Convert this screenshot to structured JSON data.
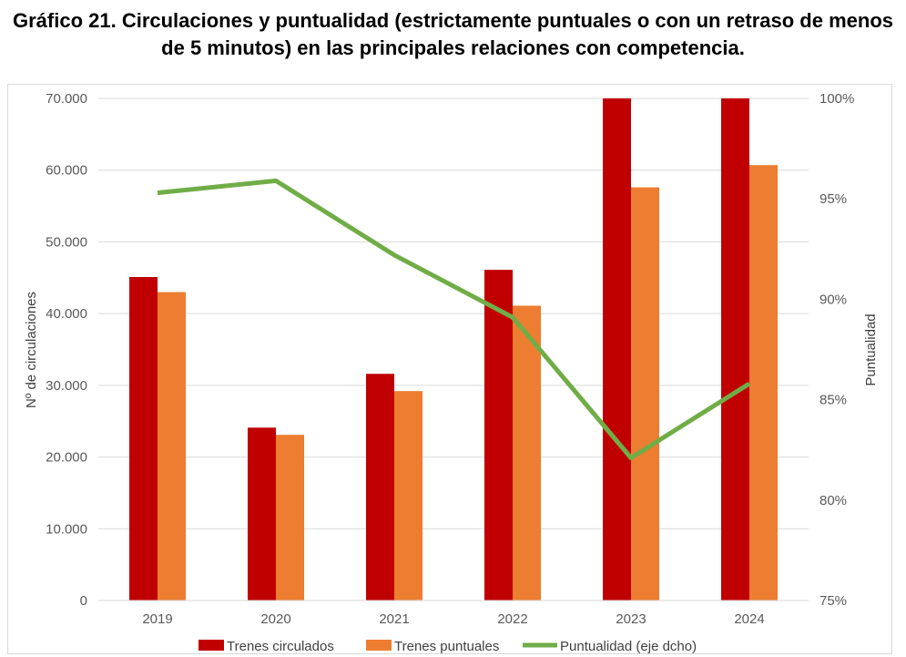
{
  "title": "Gráfico 21. Circulaciones y puntualidad (estrictamente puntuales o con un retraso de menos de 5 minutos) en las principales relaciones con competencia.",
  "chart_data": {
    "type": "bar",
    "categories": [
      "2019",
      "2020",
      "2021",
      "2022",
      "2023",
      "2024"
    ],
    "series": [
      {
        "name": "Trenes circulados",
        "type": "bar",
        "axis": "left",
        "color": "#c00000",
        "values": [
          45100,
          24100,
          31600,
          46100,
          70000,
          70000
        ]
      },
      {
        "name": "Trenes puntuales",
        "type": "bar",
        "axis": "left",
        "color": "#ed7d31",
        "values": [
          43000,
          23100,
          29200,
          41100,
          57600,
          60700
        ]
      },
      {
        "name": "Puntualidad (eje dcho)",
        "type": "line",
        "axis": "right",
        "color": "#70ad47",
        "values": [
          95.3,
          95.9,
          92.2,
          89.1,
          82.1,
          85.8
        ]
      }
    ],
    "ylabel": "Nº de circulaciones",
    "y2label": "Puntualidad",
    "ylim": [
      0,
      70000
    ],
    "y2lim": [
      75,
      100
    ],
    "yticks": [
      "0",
      "10.000",
      "20.000",
      "30.000",
      "40.000",
      "50.000",
      "60.000",
      "70.000"
    ],
    "y2ticks": [
      "75%",
      "80%",
      "85%",
      "90%",
      "95%",
      "100%"
    ],
    "grid": true,
    "legend_position": "bottom"
  }
}
